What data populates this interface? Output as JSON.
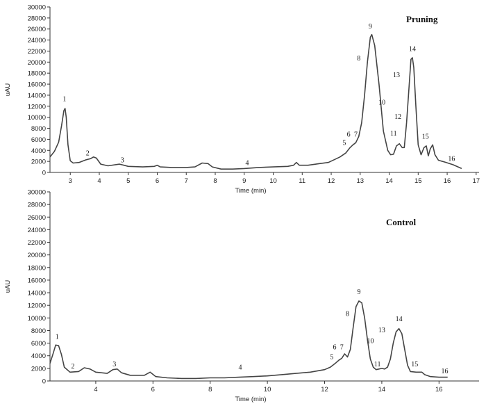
{
  "chart_data": [
    {
      "type": "line",
      "title": "Pruning",
      "xlabel": "Time (min)",
      "ylabel": "uAU",
      "xlim": [
        2.3,
        17.1
      ],
      "ylim": [
        0,
        30000
      ],
      "xticks": [
        3,
        4,
        5,
        6,
        7,
        8,
        9,
        10,
        11,
        12,
        13,
        14,
        15,
        16,
        17
      ],
      "yticks": [
        0,
        2000,
        4000,
        6000,
        8000,
        10000,
        12000,
        14000,
        16000,
        18000,
        20000,
        22000,
        24000,
        26000,
        28000,
        30000
      ],
      "series": [
        {
          "color": "#444444",
          "x": [
            2.3,
            2.45,
            2.6,
            2.7,
            2.78,
            2.82,
            2.86,
            2.92,
            3.0,
            3.1,
            3.3,
            3.55,
            3.7,
            3.8,
            3.9,
            4.05,
            4.3,
            4.7,
            4.85,
            5.0,
            5.5,
            5.9,
            6.0,
            6.1,
            6.5,
            7.0,
            7.3,
            7.55,
            7.75,
            7.9,
            8.2,
            8.6,
            9.0,
            9.5,
            10.0,
            10.5,
            10.7,
            10.8,
            10.9,
            11.2,
            11.6,
            11.9,
            12.1,
            12.3,
            12.5,
            12.65,
            12.75,
            12.85,
            12.95,
            13.05,
            13.15,
            13.25,
            13.35,
            13.4,
            13.5,
            13.65,
            13.8,
            13.95,
            14.05,
            14.15,
            14.25,
            14.35,
            14.45,
            14.52,
            14.6,
            14.68,
            14.75,
            14.8,
            14.85,
            14.92,
            15.0,
            15.1,
            15.2,
            15.28,
            15.35,
            15.42,
            15.5,
            15.58,
            15.7,
            15.9,
            16.2,
            16.5
          ],
          "y": [
            2800,
            3800,
            5500,
            8500,
            11200,
            11600,
            10000,
            5000,
            2100,
            1700,
            1800,
            2300,
            2500,
            2800,
            2600,
            1500,
            1200,
            1500,
            1300,
            1100,
            1000,
            1100,
            1300,
            1000,
            900,
            900,
            1000,
            1700,
            1600,
            1000,
            600,
            600,
            700,
            900,
            1000,
            1100,
            1300,
            1800,
            1300,
            1300,
            1600,
            1800,
            2300,
            2800,
            3500,
            4500,
            5000,
            5400,
            6500,
            9000,
            14000,
            20000,
            24500,
            25000,
            23000,
            16000,
            7500,
            4000,
            3200,
            3300,
            4800,
            5200,
            4500,
            4500,
            9000,
            15000,
            20500,
            20800,
            19000,
            12000,
            5000,
            3200,
            4500,
            4800,
            3000,
            4300,
            5000,
            3200,
            2200,
            1900,
            1400,
            700
          ]
        }
      ],
      "peak_labels": [
        {
          "text": "1",
          "x": 2.8,
          "y": 12900
        },
        {
          "text": "2",
          "x": 3.6,
          "y": 3100
        },
        {
          "text": "3",
          "x": 4.8,
          "y": 1800
        },
        {
          "text": "4",
          "x": 9.1,
          "y": 1300
        },
        {
          "text": "5",
          "x": 12.45,
          "y": 5000
        },
        {
          "text": "6",
          "x": 12.6,
          "y": 6500
        },
        {
          "text": "7",
          "x": 12.85,
          "y": 6500
        },
        {
          "text": "8",
          "x": 12.95,
          "y": 20300
        },
        {
          "text": "9",
          "x": 13.35,
          "y": 26100
        },
        {
          "text": "10",
          "x": 13.75,
          "y": 12300
        },
        {
          "text": "11",
          "x": 14.15,
          "y": 6700
        },
        {
          "text": "12",
          "x": 14.3,
          "y": 9700
        },
        {
          "text": "13",
          "x": 14.25,
          "y": 17300
        },
        {
          "text": "14",
          "x": 14.8,
          "y": 22000
        },
        {
          "text": "15",
          "x": 15.25,
          "y": 6100
        },
        {
          "text": "16",
          "x": 16.15,
          "y": 2100
        }
      ]
    },
    {
      "type": "line",
      "title": "Control",
      "xlabel": "Time (min)",
      "ylabel": "uAU",
      "xlim": [
        2.4,
        17.4
      ],
      "ylim": [
        0,
        30000
      ],
      "xticks": [
        4,
        6,
        8,
        10,
        12,
        14,
        16
      ],
      "yticks": [
        0,
        2000,
        4000,
        6000,
        8000,
        10000,
        12000,
        14000,
        16000,
        18000,
        20000,
        22000,
        24000,
        26000,
        28000,
        30000
      ],
      "series": [
        {
          "color": "#444444",
          "x": [
            2.4,
            2.5,
            2.6,
            2.7,
            2.8,
            2.9,
            3.1,
            3.4,
            3.6,
            3.8,
            4.0,
            4.4,
            4.6,
            4.75,
            4.9,
            5.2,
            5.7,
            5.9,
            6.1,
            6.5,
            7.0,
            7.5,
            8.0,
            8.5,
            9.0,
            9.5,
            10.0,
            10.5,
            11.0,
            11.5,
            12.0,
            12.2,
            12.4,
            12.5,
            12.6,
            12.7,
            12.8,
            12.9,
            13.0,
            13.1,
            13.2,
            13.3,
            13.4,
            13.5,
            13.6,
            13.7,
            13.8,
            13.9,
            14.0,
            14.1,
            14.2,
            14.3,
            14.4,
            14.5,
            14.6,
            14.7,
            14.8,
            14.9,
            15.0,
            15.2,
            15.4,
            15.5,
            15.7,
            16.0,
            16.3
          ],
          "y": [
            2800,
            4200,
            5700,
            5600,
            4200,
            2200,
            1400,
            1500,
            2100,
            1900,
            1400,
            1200,
            1800,
            1900,
            1300,
            900,
            900,
            1400,
            700,
            500,
            400,
            400,
            500,
            500,
            600,
            700,
            800,
            1000,
            1200,
            1400,
            1800,
            2200,
            2900,
            3300,
            3600,
            4300,
            3800,
            5000,
            8500,
            11800,
            12700,
            12400,
            10000,
            6500,
            3500,
            2200,
            1800,
            1900,
            2000,
            1900,
            2200,
            3500,
            6000,
            7800,
            8300,
            7500,
            5000,
            2500,
            1500,
            1400,
            1400,
            1000,
            700,
            600,
            600
          ]
        }
      ],
      "peak_labels": [
        {
          "text": "1",
          "x": 2.65,
          "y": 6700
        },
        {
          "text": "2",
          "x": 3.2,
          "y": 2000
        },
        {
          "text": "3",
          "x": 4.65,
          "y": 2300
        },
        {
          "text": "4",
          "x": 9.05,
          "y": 1800
        },
        {
          "text": "5",
          "x": 12.25,
          "y": 3500
        },
        {
          "text": "6",
          "x": 12.35,
          "y": 5000
        },
        {
          "text": "7",
          "x": 12.6,
          "y": 5000
        },
        {
          "text": "8",
          "x": 12.8,
          "y": 10300
        },
        {
          "text": "9",
          "x": 13.2,
          "y": 13800
        },
        {
          "text": "10",
          "x": 13.6,
          "y": 6000
        },
        {
          "text": "11",
          "x": 13.85,
          "y": 2300
        },
        {
          "text": "13",
          "x": 14.0,
          "y": 7700
        },
        {
          "text": "14",
          "x": 14.6,
          "y": 9500
        },
        {
          "text": "15",
          "x": 15.15,
          "y": 2300
        },
        {
          "text": "16",
          "x": 16.2,
          "y": 1200
        }
      ]
    }
  ]
}
